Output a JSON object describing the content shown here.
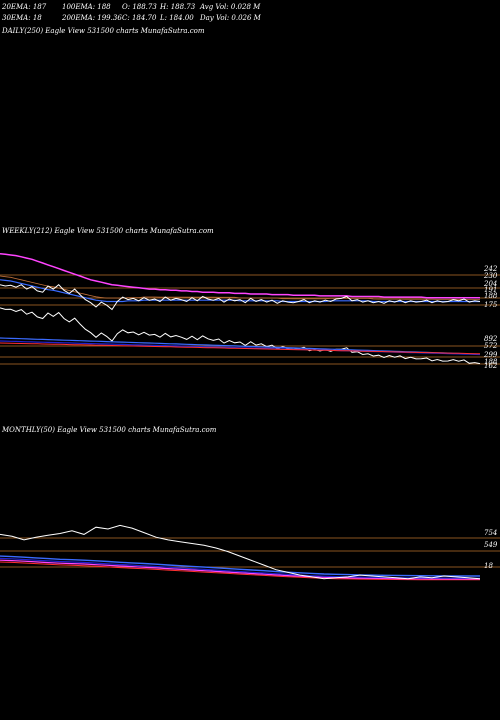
{
  "header": {
    "row1": [
      {
        "id": "ema20",
        "text": "20EMA: 187"
      },
      {
        "id": "ema100",
        "text": "100EMA: 188"
      },
      {
        "id": "open",
        "text": "O: 188.73"
      },
      {
        "id": "high",
        "text": "H: 188.73"
      },
      {
        "id": "avgvol",
        "text": "Avg Vol: 0.028 M"
      }
    ],
    "row2": [
      {
        "id": "ema30",
        "text": "30EMA: 18"
      },
      {
        "id": "ema200",
        "text": "200EMA: 199.36"
      },
      {
        "id": "close",
        "text": "C: 184.70"
      },
      {
        "id": "low",
        "text": "L: 184.00"
      },
      {
        "id": "dayvol",
        "text": "Day Vol: 0.026  M"
      }
    ]
  },
  "panels": {
    "daily": {
      "title": "DAILY(250) Eagle  View  531500  charts MunafaSutra.com"
    },
    "weekly": {
      "title": "WEEKLY(212) Eagle  View  531500  charts MunafaSutra.com"
    },
    "monthly": {
      "title": "MONTHLY(50) Eagle  View  531500  charts MunafaSutra.com"
    }
  },
  "colors": {
    "price": "#ffffff",
    "ema_blue": "#3a6bff",
    "ema_mid": "#2222cc",
    "ema_long": "#ff44ff",
    "ema_brown": "#c0703a",
    "ema_red": "#ff3030",
    "level": "#b8702c",
    "bg": "#000000"
  },
  "chart_data": [
    {
      "type": "line",
      "title": "DAILY(250) Eagle  View  531500  charts MunafaSutra.com",
      "series": []
    },
    {
      "type": "line",
      "title": "WEEKLY(212) Eagle  View  531500  charts MunafaSutra.com",
      "y_labels": [
        "242",
        "230",
        "204",
        "191",
        "188",
        "175",
        "892",
        "572",
        "299",
        "188",
        "162"
      ],
      "series": [
        {
          "role": "price",
          "values": [
            212,
            210,
            211,
            208,
            212,
            205,
            209,
            202,
            200,
            210,
            205,
            212,
            203,
            198,
            205,
            196,
            188,
            183,
            176,
            184,
            179,
            172,
            185,
            192,
            188,
            190,
            186,
            191,
            187,
            189,
            185,
            192,
            187,
            190,
            188,
            185,
            191,
            186,
            193,
            189,
            187,
            190,
            184,
            189,
            186,
            188,
            183,
            190,
            185,
            188,
            184,
            187,
            182,
            186,
            184,
            183,
            185,
            188,
            183,
            186,
            184,
            187,
            185,
            189,
            190,
            193,
            186,
            188,
            184,
            186,
            183,
            185,
            182,
            186,
            184,
            187,
            183,
            186,
            184,
            185,
            187,
            183,
            186,
            184,
            185,
            188,
            186,
            189,
            184,
            186,
            185
          ]
        },
        {
          "role": "ema_fast",
          "values": [
            220,
            219,
            218,
            216,
            214,
            212,
            210,
            208,
            206,
            204,
            203,
            201,
            199,
            197,
            195,
            193,
            191,
            189,
            187,
            186,
            185,
            185,
            185,
            185,
            186,
            186,
            186,
            187,
            187,
            187,
            187,
            187,
            187,
            187,
            187,
            187,
            187,
            187,
            187,
            187,
            187,
            187,
            187,
            187,
            187,
            186,
            186,
            186,
            186,
            186,
            186,
            186,
            186,
            185,
            185,
            185,
            185,
            185,
            185,
            185,
            185,
            185,
            186,
            186,
            186,
            186,
            186,
            186,
            186,
            186,
            185,
            185,
            185,
            185,
            185,
            185,
            185,
            185,
            185,
            185,
            185,
            185,
            185,
            185,
            185,
            185,
            185,
            185,
            185,
            185,
            185
          ]
        },
        {
          "role": "ema_long",
          "values": [
            262,
            261,
            260,
            259,
            257,
            255,
            253,
            250,
            247,
            244,
            241,
            238,
            235,
            232,
            229,
            226,
            223,
            220,
            218,
            216,
            214,
            212,
            211,
            210,
            209,
            208,
            207,
            206,
            205,
            205,
            204,
            204,
            203,
            203,
            202,
            202,
            201,
            201,
            200,
            200,
            200,
            199,
            199,
            199,
            198,
            198,
            198,
            197,
            197,
            197,
            197,
            196,
            196,
            196,
            196,
            195,
            195,
            195,
            195,
            195,
            194,
            194,
            194,
            194,
            194,
            194,
            193,
            193,
            193,
            193,
            193,
            193,
            192,
            192,
            192,
            192,
            192,
            192,
            192,
            192,
            191,
            191,
            191,
            191,
            191,
            191,
            191,
            191,
            191,
            191,
            191
          ]
        }
      ]
    },
    {
      "type": "line",
      "title": "MONTHLY(50) Eagle  View  531500  charts MunafaSutra.com",
      "y_labels": [
        "754",
        "549",
        "18"
      ],
      "series": [
        {
          "role": "price",
          "values": [
            620,
            600,
            560,
            590,
            610,
            630,
            660,
            620,
            700,
            680,
            720,
            690,
            640,
            590,
            560,
            540,
            520,
            500,
            470,
            430,
            380,
            330,
            280,
            230,
            200,
            170,
            150,
            130,
            140,
            150,
            170,
            160,
            150,
            140,
            130,
            150,
            140,
            160,
            150,
            140,
            130
          ]
        },
        {
          "role": "ema",
          "values": [
            380,
            375,
            368,
            360,
            352,
            345,
            340,
            335,
            328,
            320,
            312,
            305,
            298,
            290,
            282,
            274,
            266,
            258,
            250,
            242,
            234,
            226,
            218,
            210,
            202,
            195,
            188,
            182,
            178,
            175,
            172,
            170,
            168,
            166,
            164,
            163,
            162,
            161,
            160,
            160,
            160
          ]
        }
      ]
    }
  ]
}
